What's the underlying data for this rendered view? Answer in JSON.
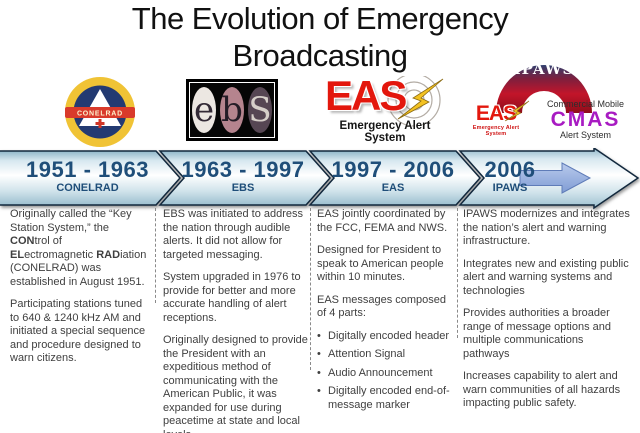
{
  "colors": {
    "timeline_text": "#1f4e79",
    "eas_red": "#e3170d",
    "cmas_purple": "#a81bc2",
    "body_text": "#3f3f3f"
  },
  "title": {
    "line1": "The Evolution of Emergency",
    "line2": "Broadcasting"
  },
  "logos": {
    "conelrad": {
      "banner_text": "CONELRAD"
    },
    "ebs": {
      "letters": [
        "e",
        "b",
        "S"
      ]
    },
    "eas": {
      "acronym": "EAS",
      "caption": "Emergency Alert System"
    },
    "ipaws": {
      "arch_text": "IPAWS"
    },
    "eas_small": {
      "acronym": "EAS",
      "caption": "Emergency Alert System"
    },
    "cmas": {
      "line1": "Commercial Mobile",
      "acronym": "CMAS",
      "line2": "Alert System"
    }
  },
  "timeline": {
    "segments": [
      {
        "years": "1951 - 1963",
        "label": "CONELRAD"
      },
      {
        "years": "1963 - 1997",
        "label": "EBS"
      },
      {
        "years": "1997 - 2006",
        "label": "EAS"
      },
      {
        "years": "2006",
        "label": "IPAWS"
      }
    ]
  },
  "columns": [
    {
      "items": [
        {
          "type": "rich",
          "segments": [
            {
              "text": "Originally called the “Key Station System,” the "
            },
            {
              "text": "CON",
              "bold": true
            },
            {
              "text": "trol of "
            },
            {
              "text": "EL",
              "bold": true
            },
            {
              "text": "ectromagnetic "
            },
            {
              "text": "RAD",
              "bold": true
            },
            {
              "text": "iation (CONELRAD) was established in August 1951."
            }
          ]
        },
        {
          "type": "p",
          "text": "Participating stations tuned to 640 & 1240 kHz AM and initiated a special sequence and procedure designed to warn citizens."
        }
      ]
    },
    {
      "items": [
        {
          "type": "p",
          "text": "EBS was initiated to address the nation through audible alerts. It did not allow for targeted messaging."
        },
        {
          "type": "p",
          "text": "System upgraded in 1976 to provide for better and more accurate handling of alert receptions."
        },
        {
          "type": "p",
          "text": "Originally designed to provide the President with an expeditious method of communicating with the American Public, it was expanded for use during peacetime at state and local levels."
        }
      ]
    },
    {
      "items": [
        {
          "type": "p",
          "text": "EAS jointly coordinated by the FCC, FEMA and NWS."
        },
        {
          "type": "p",
          "text": "Designed for President to speak to American people within 10 minutes."
        },
        {
          "type": "p",
          "text": "EAS messages composed of 4 parts:"
        },
        {
          "type": "bullet",
          "text": "Digitally encoded header"
        },
        {
          "type": "bullet",
          "text": "Attention Signal"
        },
        {
          "type": "bullet",
          "text": "Audio Announcement"
        },
        {
          "type": "bullet",
          "text": "Digitally encoded end-of-message marker"
        }
      ]
    },
    {
      "items": [
        {
          "type": "p",
          "text": "IPAWS modernizes and integrates the nation’s alert and warning infrastructure."
        },
        {
          "type": "p",
          "text": "Integrates new and existing public alert and warning systems and technologies"
        },
        {
          "type": "p",
          "text": "Provides authorities a broader range of message options and multiple communications pathways"
        },
        {
          "type": "p",
          "text": "Increases capability to alert and warn communities of all hazards impacting public safety."
        }
      ]
    }
  ]
}
